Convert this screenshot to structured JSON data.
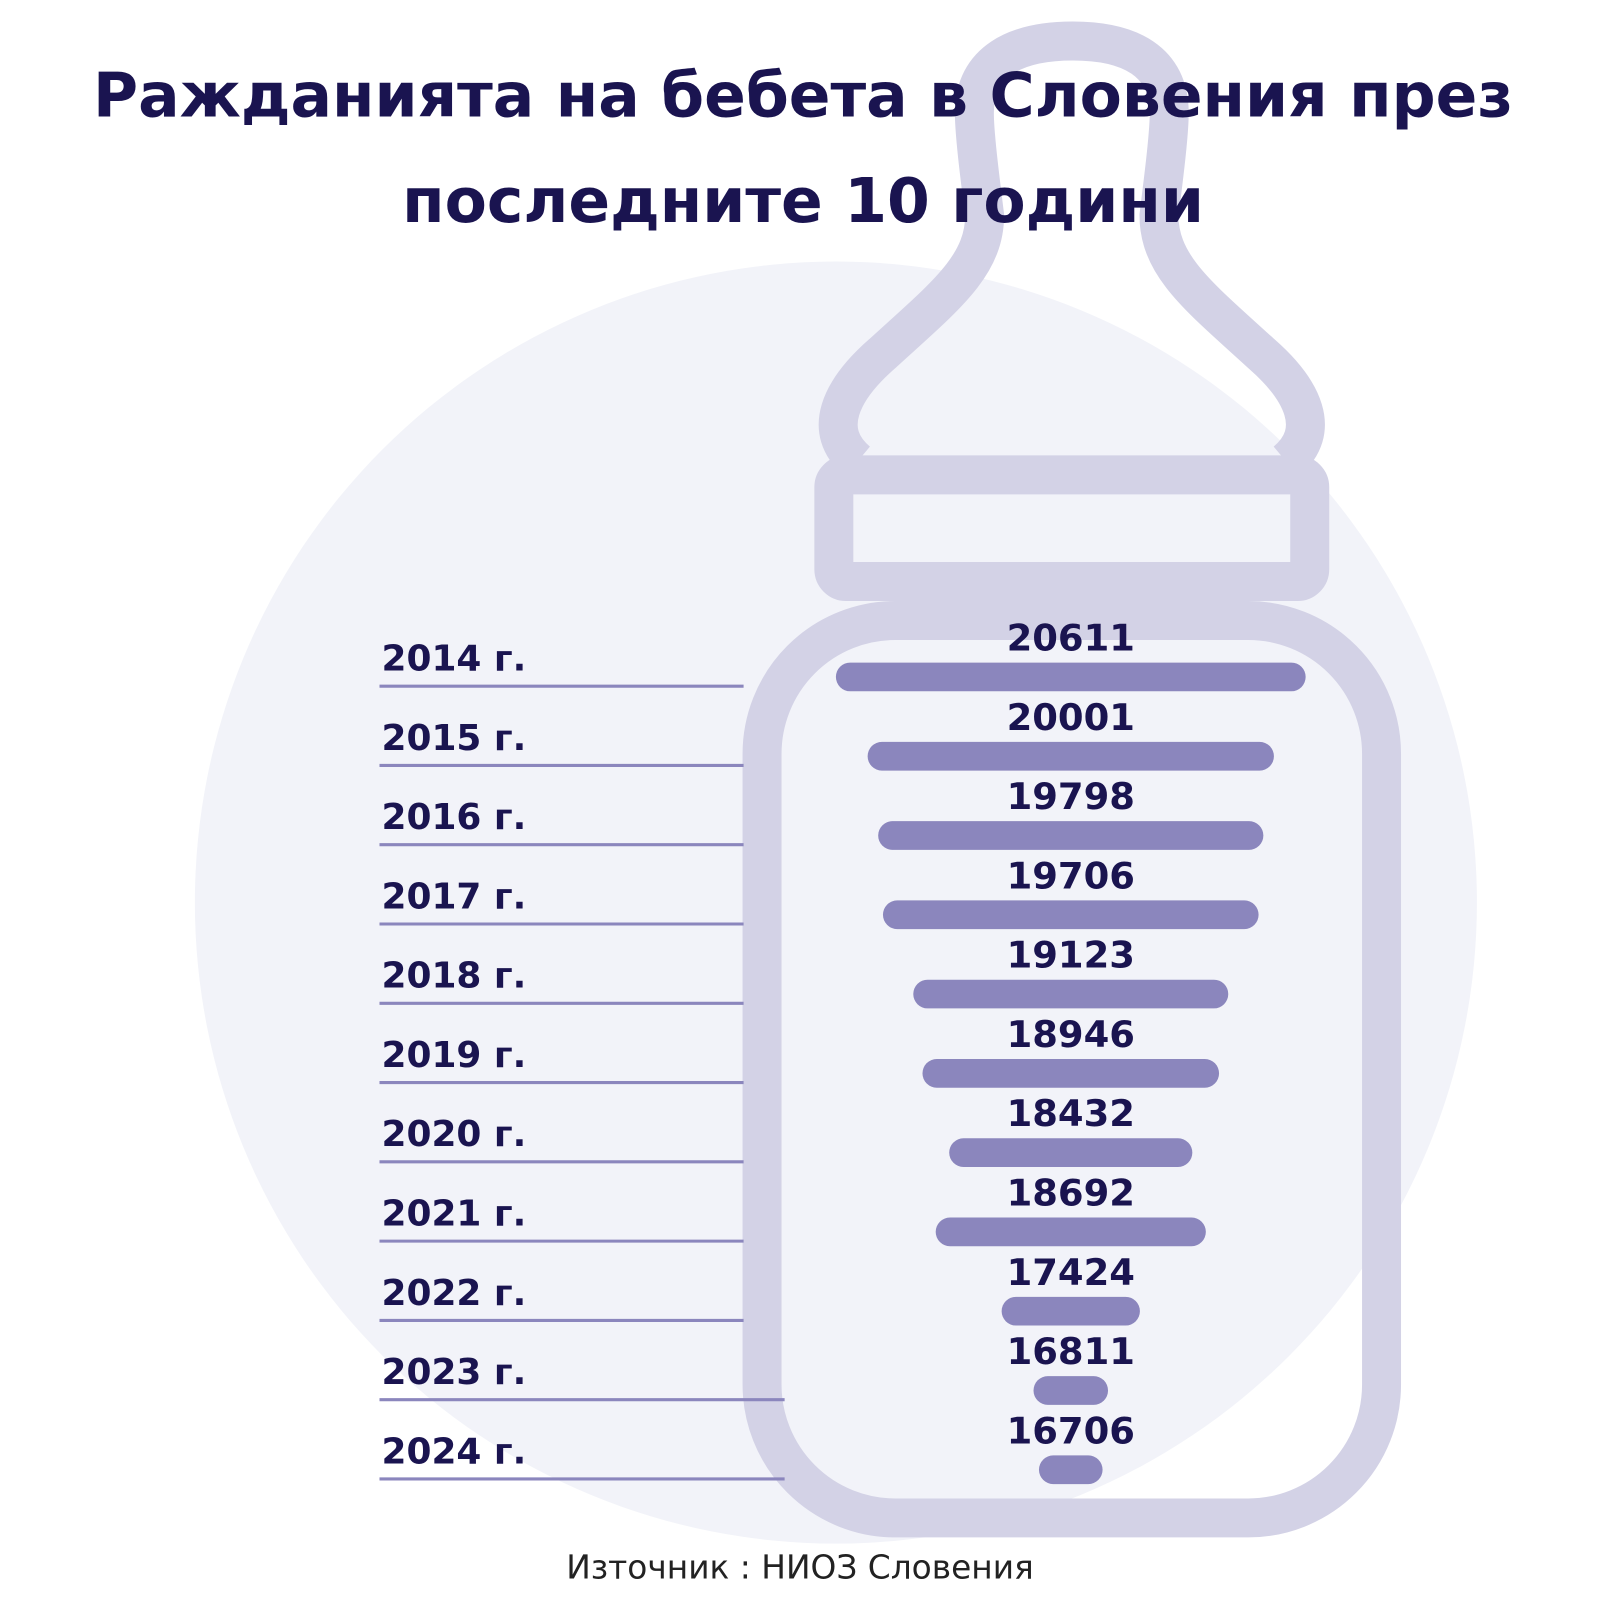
{
  "chart_data": {
    "type": "bar",
    "orientation": "centered-horizontal",
    "title": [
      "Ражданията на бебета в Словения през",
      "последните 10 години"
    ],
    "categories": [
      "2014 г.",
      "2015 г.",
      "2016 г.",
      "2017 г.",
      "2018 г.",
      "2019 г.",
      "2020 г.",
      "2021 г.",
      "2022 г.",
      "2023 г.",
      "2024 г."
    ],
    "values": [
      20611,
      20001,
      19798,
      19706,
      19123,
      18946,
      18432,
      18692,
      17424,
      16811,
      16706
    ],
    "color": "#8b86bd",
    "source": "Източник : НИОЗ Словения"
  }
}
